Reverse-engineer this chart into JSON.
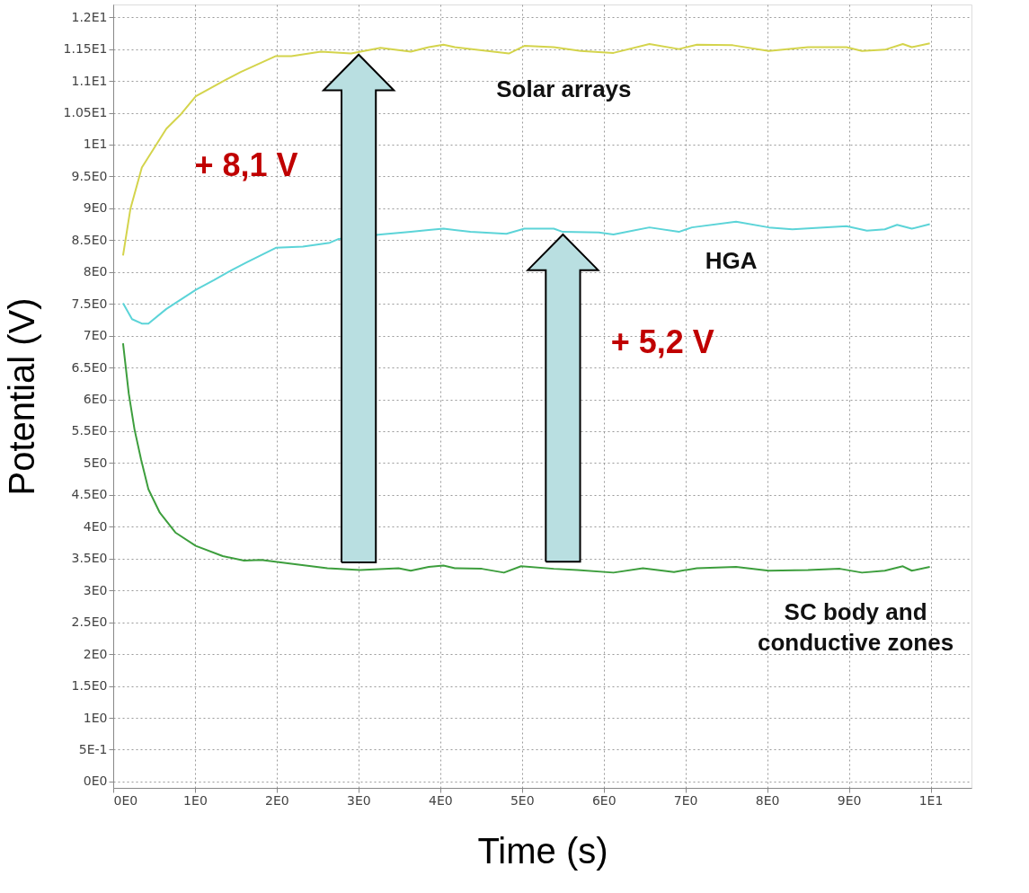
{
  "chart_data": {
    "type": "line",
    "xlabel": "Time (s)",
    "ylabel": "Potential (V)",
    "xlim": [
      0,
      10.5
    ],
    "ylim": [
      -0.1,
      12.2
    ],
    "xticks": [
      {
        "value": 0,
        "label": "0E0"
      },
      {
        "value": 1,
        "label": "1E0"
      },
      {
        "value": 2,
        "label": "2E0"
      },
      {
        "value": 3,
        "label": "3E0"
      },
      {
        "value": 4,
        "label": "4E0"
      },
      {
        "value": 5,
        "label": "5E0"
      },
      {
        "value": 6,
        "label": "6E0"
      },
      {
        "value": 7,
        "label": "7E0"
      },
      {
        "value": 8,
        "label": "8E0"
      },
      {
        "value": 9,
        "label": "9E0"
      },
      {
        "value": 10,
        "label": "1E1"
      }
    ],
    "yticks": [
      {
        "value": 0,
        "label": "0E0"
      },
      {
        "value": 0.5,
        "label": "5E-1"
      },
      {
        "value": 1,
        "label": "1E0"
      },
      {
        "value": 1.5,
        "label": "1.5E0"
      },
      {
        "value": 2,
        "label": "2E0"
      },
      {
        "value": 2.5,
        "label": "2.5E0"
      },
      {
        "value": 3,
        "label": "3E0"
      },
      {
        "value": 3.5,
        "label": "3.5E0"
      },
      {
        "value": 4,
        "label": "4E0"
      },
      {
        "value": 4.5,
        "label": "4.5E0"
      },
      {
        "value": 5,
        "label": "5E0"
      },
      {
        "value": 5.5,
        "label": "5.5E0"
      },
      {
        "value": 6,
        "label": "6E0"
      },
      {
        "value": 6.5,
        "label": "6.5E0"
      },
      {
        "value": 7,
        "label": "7E0"
      },
      {
        "value": 7.5,
        "label": "7.5E0"
      },
      {
        "value": 8,
        "label": "8E0"
      },
      {
        "value": 8.5,
        "label": "8.5E0"
      },
      {
        "value": 9,
        "label": "9E0"
      },
      {
        "value": 9.5,
        "label": "9.5E0"
      },
      {
        "value": 10,
        "label": "1E1"
      },
      {
        "value": 10.5,
        "label": "1.05E1"
      },
      {
        "value": 11,
        "label": "1.1E1"
      },
      {
        "value": 11.5,
        "label": "1.15E1"
      },
      {
        "value": 12,
        "label": "1.2E1"
      }
    ],
    "grid": true,
    "legend": false,
    "series": [
      {
        "name": "Solar arrays",
        "color": "#d4d44c",
        "x": [
          0.12,
          0.21,
          0.35,
          0.65,
          0.83,
          1.01,
          1.38,
          1.56,
          1.99,
          2.18,
          2.54,
          2.91,
          3.27,
          3.64,
          3.86,
          4.04,
          4.18,
          4.84,
          5.03,
          5.39,
          5.72,
          6.12,
          6.56,
          6.92,
          7.14,
          7.58,
          8.02,
          8.5,
          8.97,
          9.16,
          9.44,
          9.66,
          9.77,
          9.99
        ],
        "values": [
          8.26,
          8.99,
          9.64,
          10.25,
          10.48,
          10.76,
          11.02,
          11.14,
          11.39,
          11.39,
          11.46,
          11.43,
          11.52,
          11.46,
          11.53,
          11.57,
          11.53,
          11.43,
          11.55,
          11.53,
          11.47,
          11.44,
          11.58,
          11.5,
          11.57,
          11.56,
          11.47,
          11.53,
          11.53,
          11.47,
          11.49,
          11.58,
          11.53,
          11.59
        ]
      },
      {
        "name": "HGA",
        "color": "#5cd4d8",
        "x": [
          0.12,
          0.23,
          0.35,
          0.43,
          0.65,
          1.01,
          1.23,
          1.45,
          1.63,
          1.99,
          2.32,
          2.65,
          2.76,
          3.27,
          3.64,
          3.86,
          4.04,
          4.37,
          4.81,
          5.03,
          5.39,
          5.5,
          5.94,
          6.12,
          6.56,
          6.92,
          7.08,
          7.62,
          8.02,
          8.31,
          8.97,
          9.22,
          9.44,
          9.59,
          9.77,
          9.99
        ],
        "values": [
          7.51,
          7.26,
          7.19,
          7.19,
          7.42,
          7.72,
          7.87,
          8.03,
          8.15,
          8.38,
          8.4,
          8.46,
          8.52,
          8.59,
          8.63,
          8.66,
          8.68,
          8.63,
          8.6,
          8.68,
          8.68,
          8.63,
          8.62,
          8.59,
          8.7,
          8.63,
          8.7,
          8.79,
          8.7,
          8.67,
          8.72,
          8.65,
          8.67,
          8.74,
          8.68,
          8.75
        ]
      },
      {
        "name": "SC body and conductive zones",
        "color": "#3d9e3d",
        "x": [
          0.12,
          0.19,
          0.26,
          0.34,
          0.43,
          0.57,
          0.76,
          1.01,
          1.34,
          1.6,
          1.81,
          2.18,
          2.62,
          3.02,
          3.49,
          3.64,
          3.86,
          4.04,
          4.18,
          4.51,
          4.78,
          4.99,
          5.39,
          5.68,
          6.12,
          6.48,
          6.86,
          7.14,
          7.62,
          8.02,
          8.5,
          8.89,
          9.16,
          9.44,
          9.66,
          9.77,
          9.99
        ],
        "values": [
          6.88,
          6.09,
          5.53,
          5.06,
          4.59,
          4.22,
          3.91,
          3.7,
          3.54,
          3.47,
          3.48,
          3.42,
          3.35,
          3.32,
          3.35,
          3.31,
          3.37,
          3.39,
          3.35,
          3.34,
          3.28,
          3.38,
          3.34,
          3.32,
          3.28,
          3.35,
          3.29,
          3.35,
          3.37,
          3.31,
          3.32,
          3.34,
          3.28,
          3.31,
          3.38,
          3.31,
          3.37
        ]
      }
    ],
    "annotations": [
      "+ 8,1 V",
      "+ 5,2 V"
    ]
  }
}
